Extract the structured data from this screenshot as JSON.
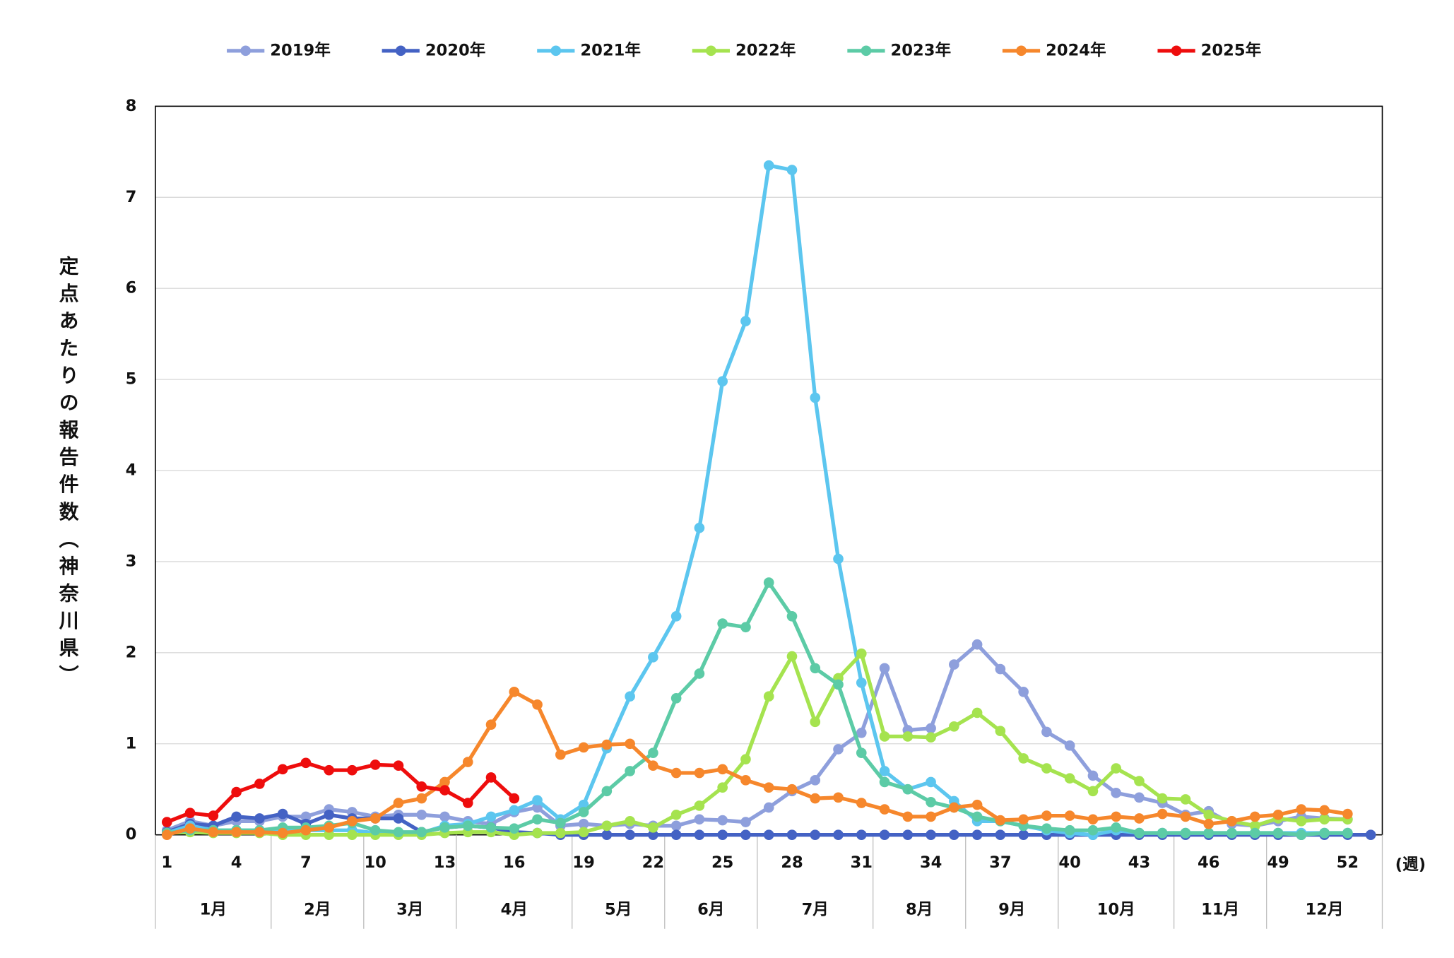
{
  "chart_data": {
    "type": "line",
    "ylabel": "定点あたりの報告件数（神奈川県）",
    "xlabel": "(週)",
    "x": [
      1,
      2,
      3,
      4,
      5,
      6,
      7,
      8,
      9,
      10,
      11,
      12,
      13,
      14,
      15,
      16,
      17,
      18,
      19,
      20,
      21,
      22,
      23,
      24,
      25,
      26,
      27,
      28,
      29,
      30,
      31,
      32,
      33,
      34,
      35,
      36,
      37,
      38,
      39,
      40,
      41,
      42,
      43,
      44,
      45,
      46,
      47,
      48,
      49,
      50,
      51,
      52,
      53
    ],
    "xlim": [
      0.5,
      53.5
    ],
    "xticks": [
      1,
      4,
      7,
      10,
      13,
      16,
      19,
      22,
      25,
      28,
      31,
      34,
      37,
      40,
      43,
      46,
      49,
      52
    ],
    "ylim": [
      0,
      8
    ],
    "yticks": [
      0,
      1,
      2,
      3,
      4,
      5,
      6,
      7,
      8
    ],
    "grid": true,
    "legend": "top",
    "months": [
      {
        "label": "1月",
        "weeks": [
          1,
          5
        ]
      },
      {
        "label": "2月",
        "weeks": [
          6,
          9
        ]
      },
      {
        "label": "3月",
        "weeks": [
          10,
          13
        ]
      },
      {
        "label": "4月",
        "weeks": [
          14,
          18
        ]
      },
      {
        "label": "5月",
        "weeks": [
          19,
          22
        ]
      },
      {
        "label": "6月",
        "weeks": [
          23,
          26
        ]
      },
      {
        "label": "7月",
        "weeks": [
          27,
          31
        ]
      },
      {
        "label": "8月",
        "weeks": [
          32,
          35
        ]
      },
      {
        "label": "9月",
        "weeks": [
          36,
          39
        ]
      },
      {
        "label": "10月",
        "weeks": [
          40,
          44
        ]
      },
      {
        "label": "11月",
        "weeks": [
          45,
          48
        ]
      },
      {
        "label": "12月",
        "weeks": [
          49,
          53
        ]
      }
    ],
    "series": [
      {
        "name": "2019年",
        "color": "#8e9fdc",
        "values": [
          0.05,
          0.15,
          0.1,
          0.15,
          0.15,
          0.2,
          0.2,
          0.28,
          0.25,
          0.2,
          0.22,
          0.22,
          0.2,
          0.15,
          0.12,
          0.25,
          0.3,
          0.1,
          0.12,
          0.1,
          0.12,
          0.1,
          0.1,
          0.17,
          0.16,
          0.14,
          0.3,
          0.48,
          0.6,
          0.94,
          1.12,
          1.83,
          1.15,
          1.17,
          1.87,
          2.09,
          1.82,
          1.57,
          1.13,
          0.98,
          0.65,
          0.46,
          0.41,
          0.35,
          0.22,
          0.26,
          0.12,
          0.1,
          0.15,
          0.2,
          0.18,
          0.17,
          null
        ]
      },
      {
        "name": "2020年",
        "color": "#4462c4",
        "values": [
          0.03,
          0.12,
          0.1,
          0.2,
          0.18,
          0.23,
          0.12,
          0.22,
          0.18,
          0.18,
          0.18,
          0.03,
          0.08,
          0.1,
          0.08,
          0.03,
          0.02,
          0,
          0,
          0,
          0,
          0,
          0,
          0,
          0,
          0,
          0,
          0,
          0,
          0,
          0,
          0,
          0,
          0,
          0,
          0,
          0,
          0,
          0,
          0,
          0,
          0,
          0,
          0,
          0,
          0,
          0,
          0,
          0,
          0,
          0,
          0,
          0
        ]
      },
      {
        "name": "2021年",
        "color": "#5cc6ef",
        "values": [
          0.02,
          0.1,
          0.05,
          0.05,
          0.05,
          0.05,
          0.05,
          0.05,
          0.05,
          0.02,
          0.02,
          0.02,
          0.1,
          0.12,
          0.2,
          0.27,
          0.38,
          0.17,
          0.33,
          0.95,
          1.52,
          1.95,
          2.4,
          3.37,
          4.98,
          5.64,
          7.35,
          7.3,
          4.8,
          3.03,
          1.67,
          0.7,
          0.5,
          0.58,
          0.37,
          0.15,
          0.15,
          0.1,
          0.05,
          0.02,
          0,
          0.05,
          0.02,
          0.02,
          0.02,
          0.02,
          0.02,
          0.02,
          0.02,
          0.02,
          0.02,
          0.02,
          null
        ]
      },
      {
        "name": "2022年",
        "color": "#a5e34f",
        "values": [
          0.02,
          0.03,
          0.02,
          0.02,
          0.02,
          0,
          0,
          0,
          0,
          0,
          0,
          0,
          0.02,
          0.03,
          0.03,
          0,
          0.02,
          0.02,
          0.03,
          0.1,
          0.15,
          0.08,
          0.22,
          0.32,
          0.52,
          0.83,
          1.52,
          1.96,
          1.24,
          1.72,
          1.99,
          1.08,
          1.08,
          1.07,
          1.19,
          1.34,
          1.14,
          0.84,
          0.73,
          0.62,
          0.48,
          0.73,
          0.59,
          0.4,
          0.39,
          0.22,
          0.15,
          0.1,
          0.18,
          0.15,
          0.17,
          0.17,
          null
        ]
      },
      {
        "name": "2023年",
        "color": "#5ccba6",
        "values": [
          0.02,
          0.05,
          0.05,
          0.05,
          0.05,
          0.08,
          0.08,
          0.1,
          0.13,
          0.05,
          0.03,
          0.03,
          0.08,
          0.1,
          0.08,
          0.07,
          0.17,
          0.13,
          0.25,
          0.48,
          0.7,
          0.9,
          1.5,
          1.77,
          2.32,
          2.28,
          2.77,
          2.4,
          1.83,
          1.65,
          0.9,
          0.58,
          0.5,
          0.36,
          0.3,
          0.2,
          0.15,
          0.1,
          0.07,
          0.05,
          0.05,
          0.08,
          0.02,
          0.02,
          0.02,
          0.02,
          0.02,
          0.02,
          0.02,
          0,
          0.02,
          0.02,
          null
        ]
      },
      {
        "name": "2024年",
        "color": "#f6872c",
        "values": [
          0,
          0.07,
          0.03,
          0.03,
          0.03,
          0.02,
          0.05,
          0.08,
          0.15,
          0.18,
          0.35,
          0.4,
          0.58,
          0.8,
          1.21,
          1.57,
          1.43,
          0.88,
          0.96,
          0.99,
          1.0,
          0.76,
          0.68,
          0.68,
          0.72,
          0.6,
          0.52,
          0.5,
          0.4,
          0.41,
          0.35,
          0.28,
          0.2,
          0.2,
          0.3,
          0.33,
          0.16,
          0.17,
          0.21,
          0.21,
          0.17,
          0.2,
          0.18,
          0.23,
          0.2,
          0.12,
          0.15,
          0.2,
          0.22,
          0.28,
          0.27,
          0.23,
          null
        ]
      },
      {
        "name": "2025年",
        "color": "#ee0d0d",
        "values": [
          0.14,
          0.24,
          0.21,
          0.47,
          0.56,
          0.72,
          0.79,
          0.71,
          0.71,
          0.77,
          0.76,
          0.53,
          0.49,
          0.35,
          0.63,
          0.4,
          null,
          null,
          null,
          null,
          null,
          null,
          null,
          null,
          null,
          null,
          null,
          null,
          null,
          null,
          null,
          null,
          null,
          null,
          null,
          null,
          null,
          null,
          null,
          null,
          null,
          null,
          null,
          null,
          null,
          null,
          null,
          null,
          null,
          null,
          null,
          null,
          null
        ]
      }
    ]
  }
}
